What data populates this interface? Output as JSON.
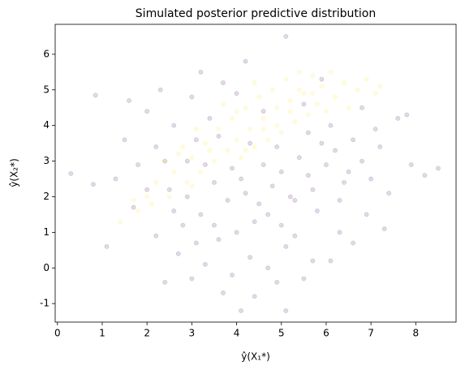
{
  "chart_data": {
    "type": "scatter",
    "title": "Simulated posterior predictive distribution",
    "xlabel": "ŷ(X₁*)",
    "ylabel": "ŷ(X₂*)",
    "xlim": [
      -0.05,
      8.9
    ],
    "ylim": [
      -1.52,
      6.84
    ],
    "xticks": [
      0,
      1,
      2,
      3,
      4,
      5,
      6,
      7,
      8
    ],
    "yticks": [
      -1,
      0,
      1,
      2,
      3,
      4,
      5,
      6
    ],
    "opacity": 0.15,
    "series": [
      {
        "color": "#440154",
        "x": [
          4.8,
          5.2,
          4.5,
          5.6,
          4.1,
          3.8,
          5.0,
          6.0,
          5.4,
          4.6,
          3.5,
          3.2,
          4.0,
          5.8,
          6.4,
          6.8,
          5.1,
          4.3,
          3.6,
          2.8,
          2.5,
          2.9,
          3.1,
          3.4,
          2.6,
          2.2,
          1.8,
          1.5,
          2.0,
          3.0,
          3.7,
          4.2,
          5.1,
          4.6,
          5.5,
          6.1,
          6.6,
          7.2,
          7.6,
          7.9,
          8.5,
          7.4,
          6.9,
          6.3,
          5.7,
          4.9,
          5.1,
          4.1,
          3.9,
          3.3,
          2.7,
          2.4,
          3.0,
          2.2,
          1.7,
          1.1,
          1.3,
          0.3,
          0.8,
          0.85,
          1.6,
          2.3,
          3.2,
          4.0,
          5.9,
          6.2,
          7.0,
          7.3,
          6.6,
          5.5,
          4.4,
          4.7,
          5.3,
          4.2,
          3.9,
          5.0,
          5.7,
          6.3,
          4.4,
          3.5,
          2.9,
          3.3,
          6.5,
          5.9,
          7.8,
          8.2,
          6.8,
          4.9,
          2.0,
          3.7,
          6.1,
          5.3,
          4.7,
          2.6,
          3.1,
          7.1,
          4.3,
          5.6,
          3.6,
          2.4
        ],
        "values": [
          2.3,
          2.0,
          1.8,
          2.6,
          2.5,
          1.9,
          1.2,
          2.9,
          3.1,
          2.9,
          2.4,
          1.5,
          1.0,
          1.6,
          2.4,
          3.0,
          0.6,
          0.3,
          0.8,
          1.2,
          2.2,
          3.0,
          3.6,
          4.2,
          4.0,
          3.4,
          2.9,
          3.6,
          4.4,
          4.8,
          5.2,
          5.8,
          6.5,
          4.4,
          4.6,
          4.0,
          3.6,
          3.4,
          4.2,
          2.9,
          2.8,
          2.1,
          1.5,
          1.0,
          0.2,
          -0.4,
          -1.2,
          -1.2,
          -0.2,
          0.1,
          0.4,
          -0.4,
          -0.3,
          0.9,
          1.7,
          0.6,
          2.5,
          2.65,
          2.35,
          4.85,
          4.7,
          5.0,
          5.5,
          4.9,
          5.3,
          3.3,
          2.5,
          1.1,
          0.7,
          -0.3,
          -0.8,
          1.5,
          1.9,
          2.1,
          2.8,
          2.7,
          2.2,
          1.9,
          1.3,
          1.2,
          2.0,
          2.9,
          2.7,
          3.5,
          4.3,
          2.6,
          4.5,
          3.4,
          2.2,
          -0.7,
          0.2,
          0.9,
          0.0,
          1.6,
          0.7,
          3.9,
          3.5,
          3.8,
          3.7,
          3.0
        ]
      },
      {
        "color": "#fde725",
        "x": [
          1.4,
          1.8,
          2.0,
          2.2,
          2.5,
          2.6,
          2.9,
          3.0,
          3.2,
          3.3,
          3.5,
          3.6,
          3.8,
          3.9,
          4.0,
          4.1,
          4.2,
          4.3,
          4.4,
          4.5,
          4.6,
          4.7,
          4.8,
          4.9,
          5.0,
          5.1,
          5.2,
          5.3,
          5.4,
          5.5,
          5.6,
          5.7,
          5.8,
          5.9,
          6.0,
          6.1,
          6.2,
          6.4,
          6.5,
          6.7,
          6.9,
          7.1,
          7.2,
          3.1,
          2.8,
          2.4,
          3.7,
          4.4,
          4.0,
          3.4,
          4.6,
          5.2,
          5.7,
          3.0,
          4.2,
          4.9,
          2.1,
          1.7,
          2.7,
          5.4
        ],
        "values": [
          1.3,
          1.6,
          2.0,
          2.4,
          2.0,
          2.7,
          2.4,
          3.1,
          2.7,
          3.5,
          3.0,
          3.9,
          3.3,
          4.2,
          3.6,
          3.1,
          4.5,
          3.9,
          3.4,
          4.8,
          4.2,
          3.6,
          5.0,
          4.5,
          3.8,
          5.3,
          4.7,
          4.1,
          5.5,
          4.9,
          4.3,
          5.4,
          4.6,
          5.1,
          4.4,
          5.5,
          4.8,
          5.2,
          4.5,
          5.0,
          5.3,
          4.9,
          5.1,
          3.9,
          3.4,
          3.0,
          4.6,
          5.2,
          4.4,
          3.3,
          3.9,
          4.4,
          4.9,
          2.3,
          3.3,
          4.0,
          1.8,
          1.9,
          3.2,
          5.0
        ]
      }
    ]
  }
}
